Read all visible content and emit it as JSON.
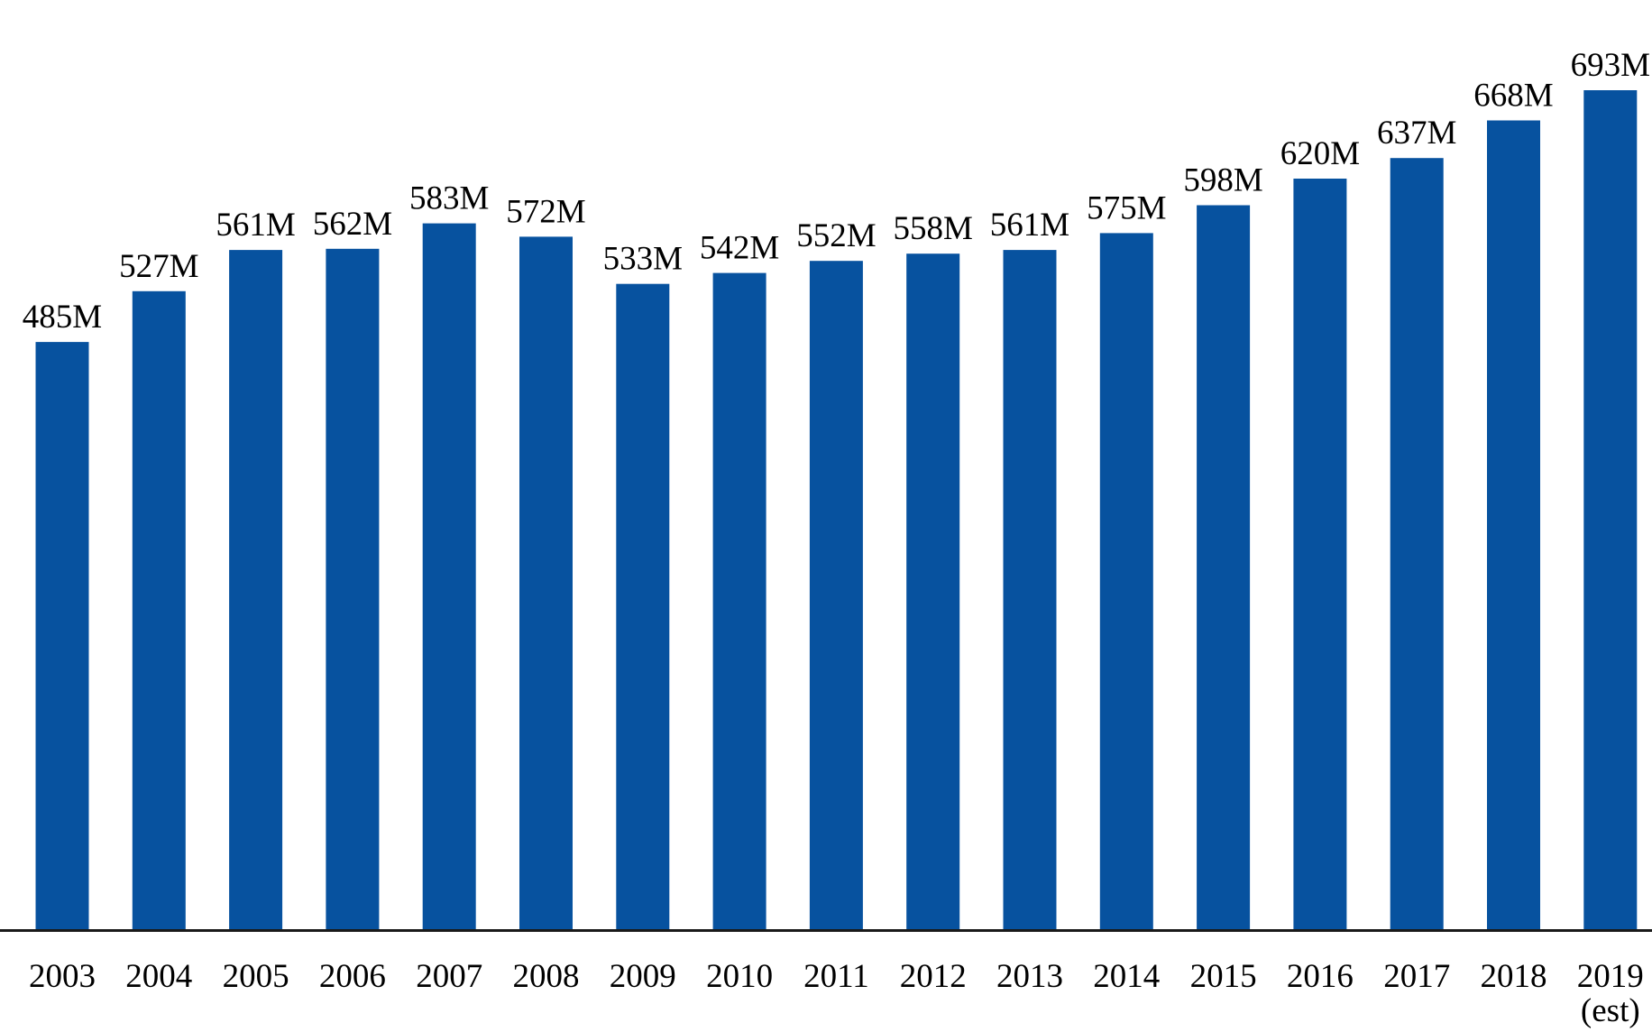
{
  "colors": {
    "bar": "#07529f",
    "baseline": "#1a1a1a",
    "text": "#000000",
    "background": "#ffffff"
  },
  "chart_data": {
    "type": "bar",
    "title": "",
    "xlabel": "",
    "ylabel": "",
    "grid": false,
    "legend": "none",
    "ylim": [
      0,
      720
    ],
    "categories": [
      "2003",
      "2004",
      "2005",
      "2006",
      "2007",
      "2008",
      "2009",
      "2010",
      "2011",
      "2012",
      "2013",
      "2014",
      "2015",
      "2016",
      "2017",
      "2018",
      "2019"
    ],
    "category_sublabels": [
      "",
      "",
      "",
      "",
      "",
      "",
      "",
      "",
      "",
      "",
      "",
      "",
      "",
      "",
      "",
      "",
      "(est)"
    ],
    "values": [
      485,
      527,
      561,
      562,
      583,
      572,
      533,
      542,
      552,
      558,
      561,
      575,
      598,
      620,
      637,
      668,
      693
    ],
    "value_labels": [
      "485M",
      "527M",
      "561M",
      "562M",
      "583M",
      "572M",
      "533M",
      "542M",
      "552M",
      "558M",
      "561M",
      "575M",
      "598M",
      "620M",
      "637M",
      "668M",
      "693M"
    ]
  }
}
